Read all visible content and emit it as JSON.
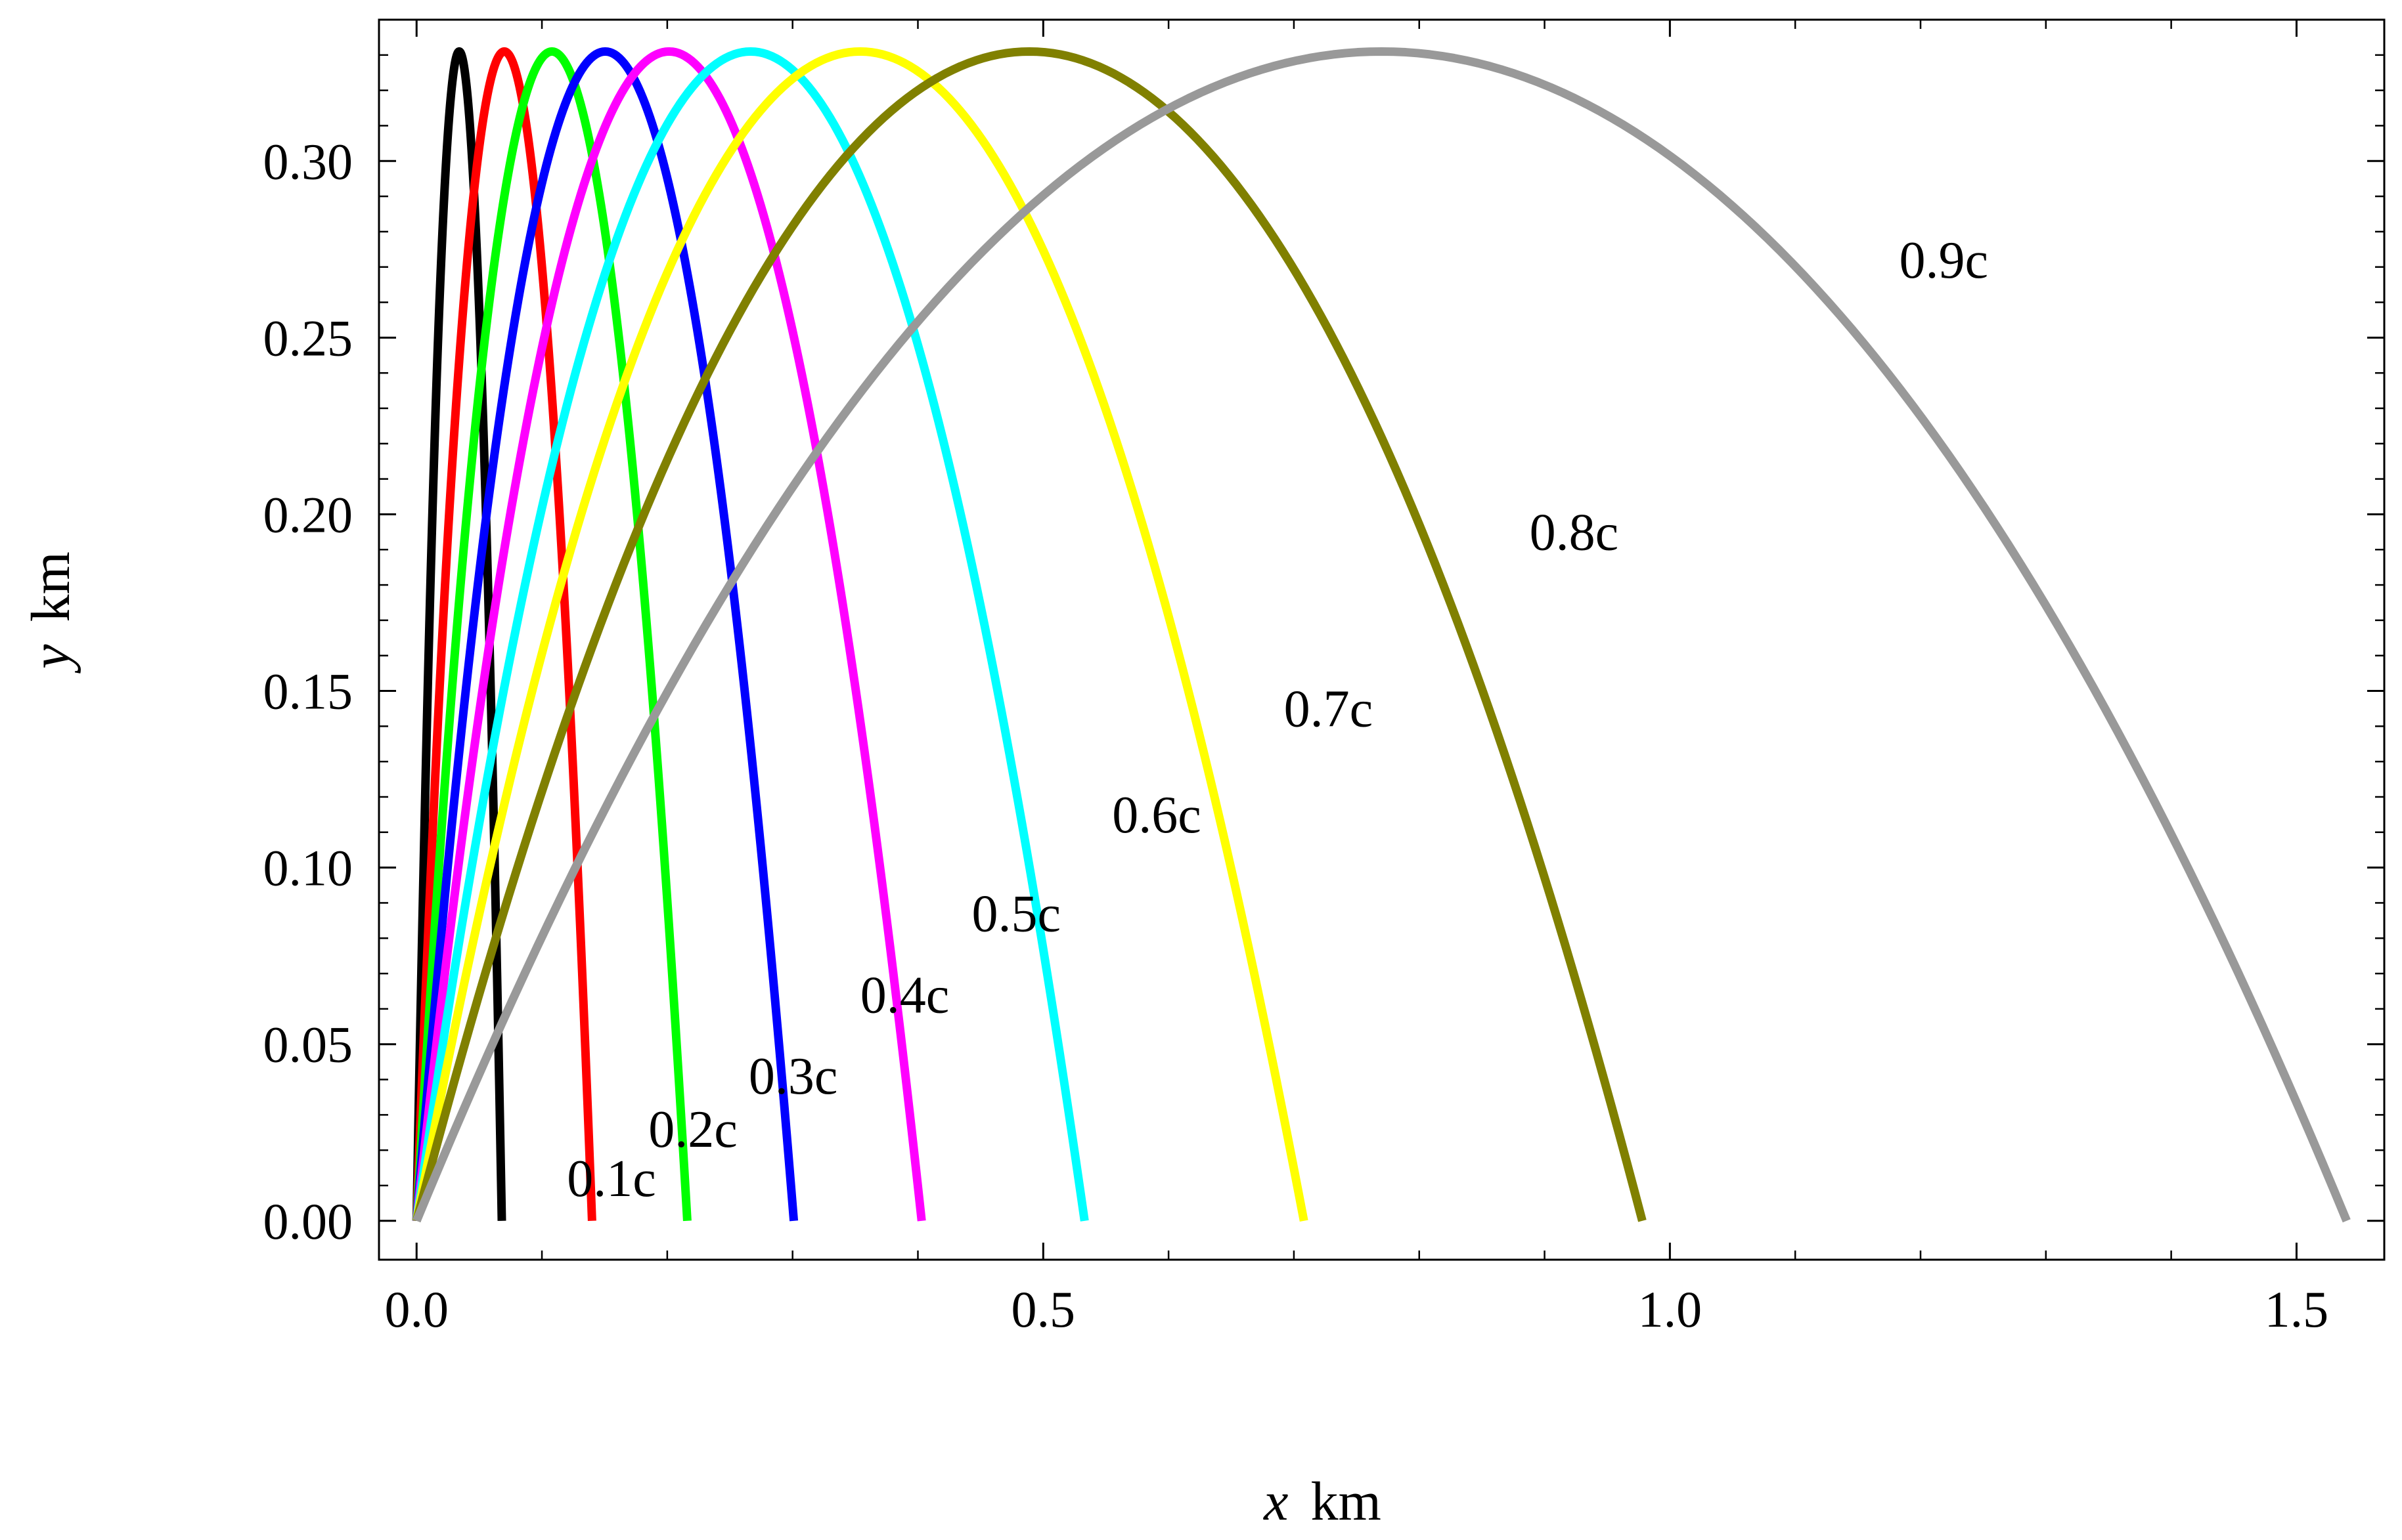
{
  "chart_data": {
    "type": "line",
    "title": "",
    "xlabel": "x  km",
    "xlabel_var": "x",
    "xlabel_unit": "km",
    "ylabel": "y  km",
    "ylabel_var": "y",
    "ylabel_unit": "km",
    "xlim": [
      -0.03,
      1.57
    ],
    "ylim": [
      -0.011,
      0.34
    ],
    "grid": false,
    "x_ticks": [
      0.0,
      0.5,
      1.0,
      1.5
    ],
    "x_tick_labels": [
      "0.0",
      "0.5",
      "1.0",
      "1.5"
    ],
    "x_minor_step": 0.1,
    "y_ticks": [
      0.0,
      0.05,
      0.1,
      0.15,
      0.2,
      0.25,
      0.3
    ],
    "y_tick_labels": [
      "0.00",
      "0.05",
      "0.10",
      "0.15",
      "0.20",
      "0.25",
      "0.30"
    ],
    "y_minor_step": 0.01,
    "peak_height": 0.331,
    "series": [
      {
        "name": "0.1c",
        "label": "0.1c",
        "color": "#000000",
        "range": 0.068,
        "label_x": 0.12,
        "label_y": 0.007
      },
      {
        "name": "0.2c",
        "label": "0.2c",
        "color": "#ff0000",
        "range": 0.14,
        "label_x": 0.185,
        "label_y": 0.021
      },
      {
        "name": "0.3c",
        "label": "0.3c",
        "color": "#00ff00",
        "range": 0.216,
        "label_x": 0.265,
        "label_y": 0.036
      },
      {
        "name": "0.4c",
        "label": "0.4c",
        "color": "#0000ff",
        "range": 0.301,
        "label_x": 0.354,
        "label_y": 0.059
      },
      {
        "name": "0.5c",
        "label": "0.5c",
        "color": "#ff00ff",
        "range": 0.403,
        "label_x": 0.443,
        "label_y": 0.082
      },
      {
        "name": "0.6c",
        "label": "0.6c",
        "color": "#00ffff",
        "range": 0.533,
        "label_x": 0.555,
        "label_y": 0.11
      },
      {
        "name": "0.7c",
        "label": "0.7c",
        "color": "#ffff00",
        "range": 0.708,
        "label_x": 0.692,
        "label_y": 0.14
      },
      {
        "name": "0.8c",
        "label": "0.8c",
        "color": "#808000",
        "range": 0.978,
        "label_x": 0.888,
        "label_y": 0.19
      },
      {
        "name": "0.9c",
        "label": "0.9c",
        "color": "#999999",
        "range": 1.54,
        "label_x": 1.183,
        "label_y": 0.267
      }
    ]
  }
}
